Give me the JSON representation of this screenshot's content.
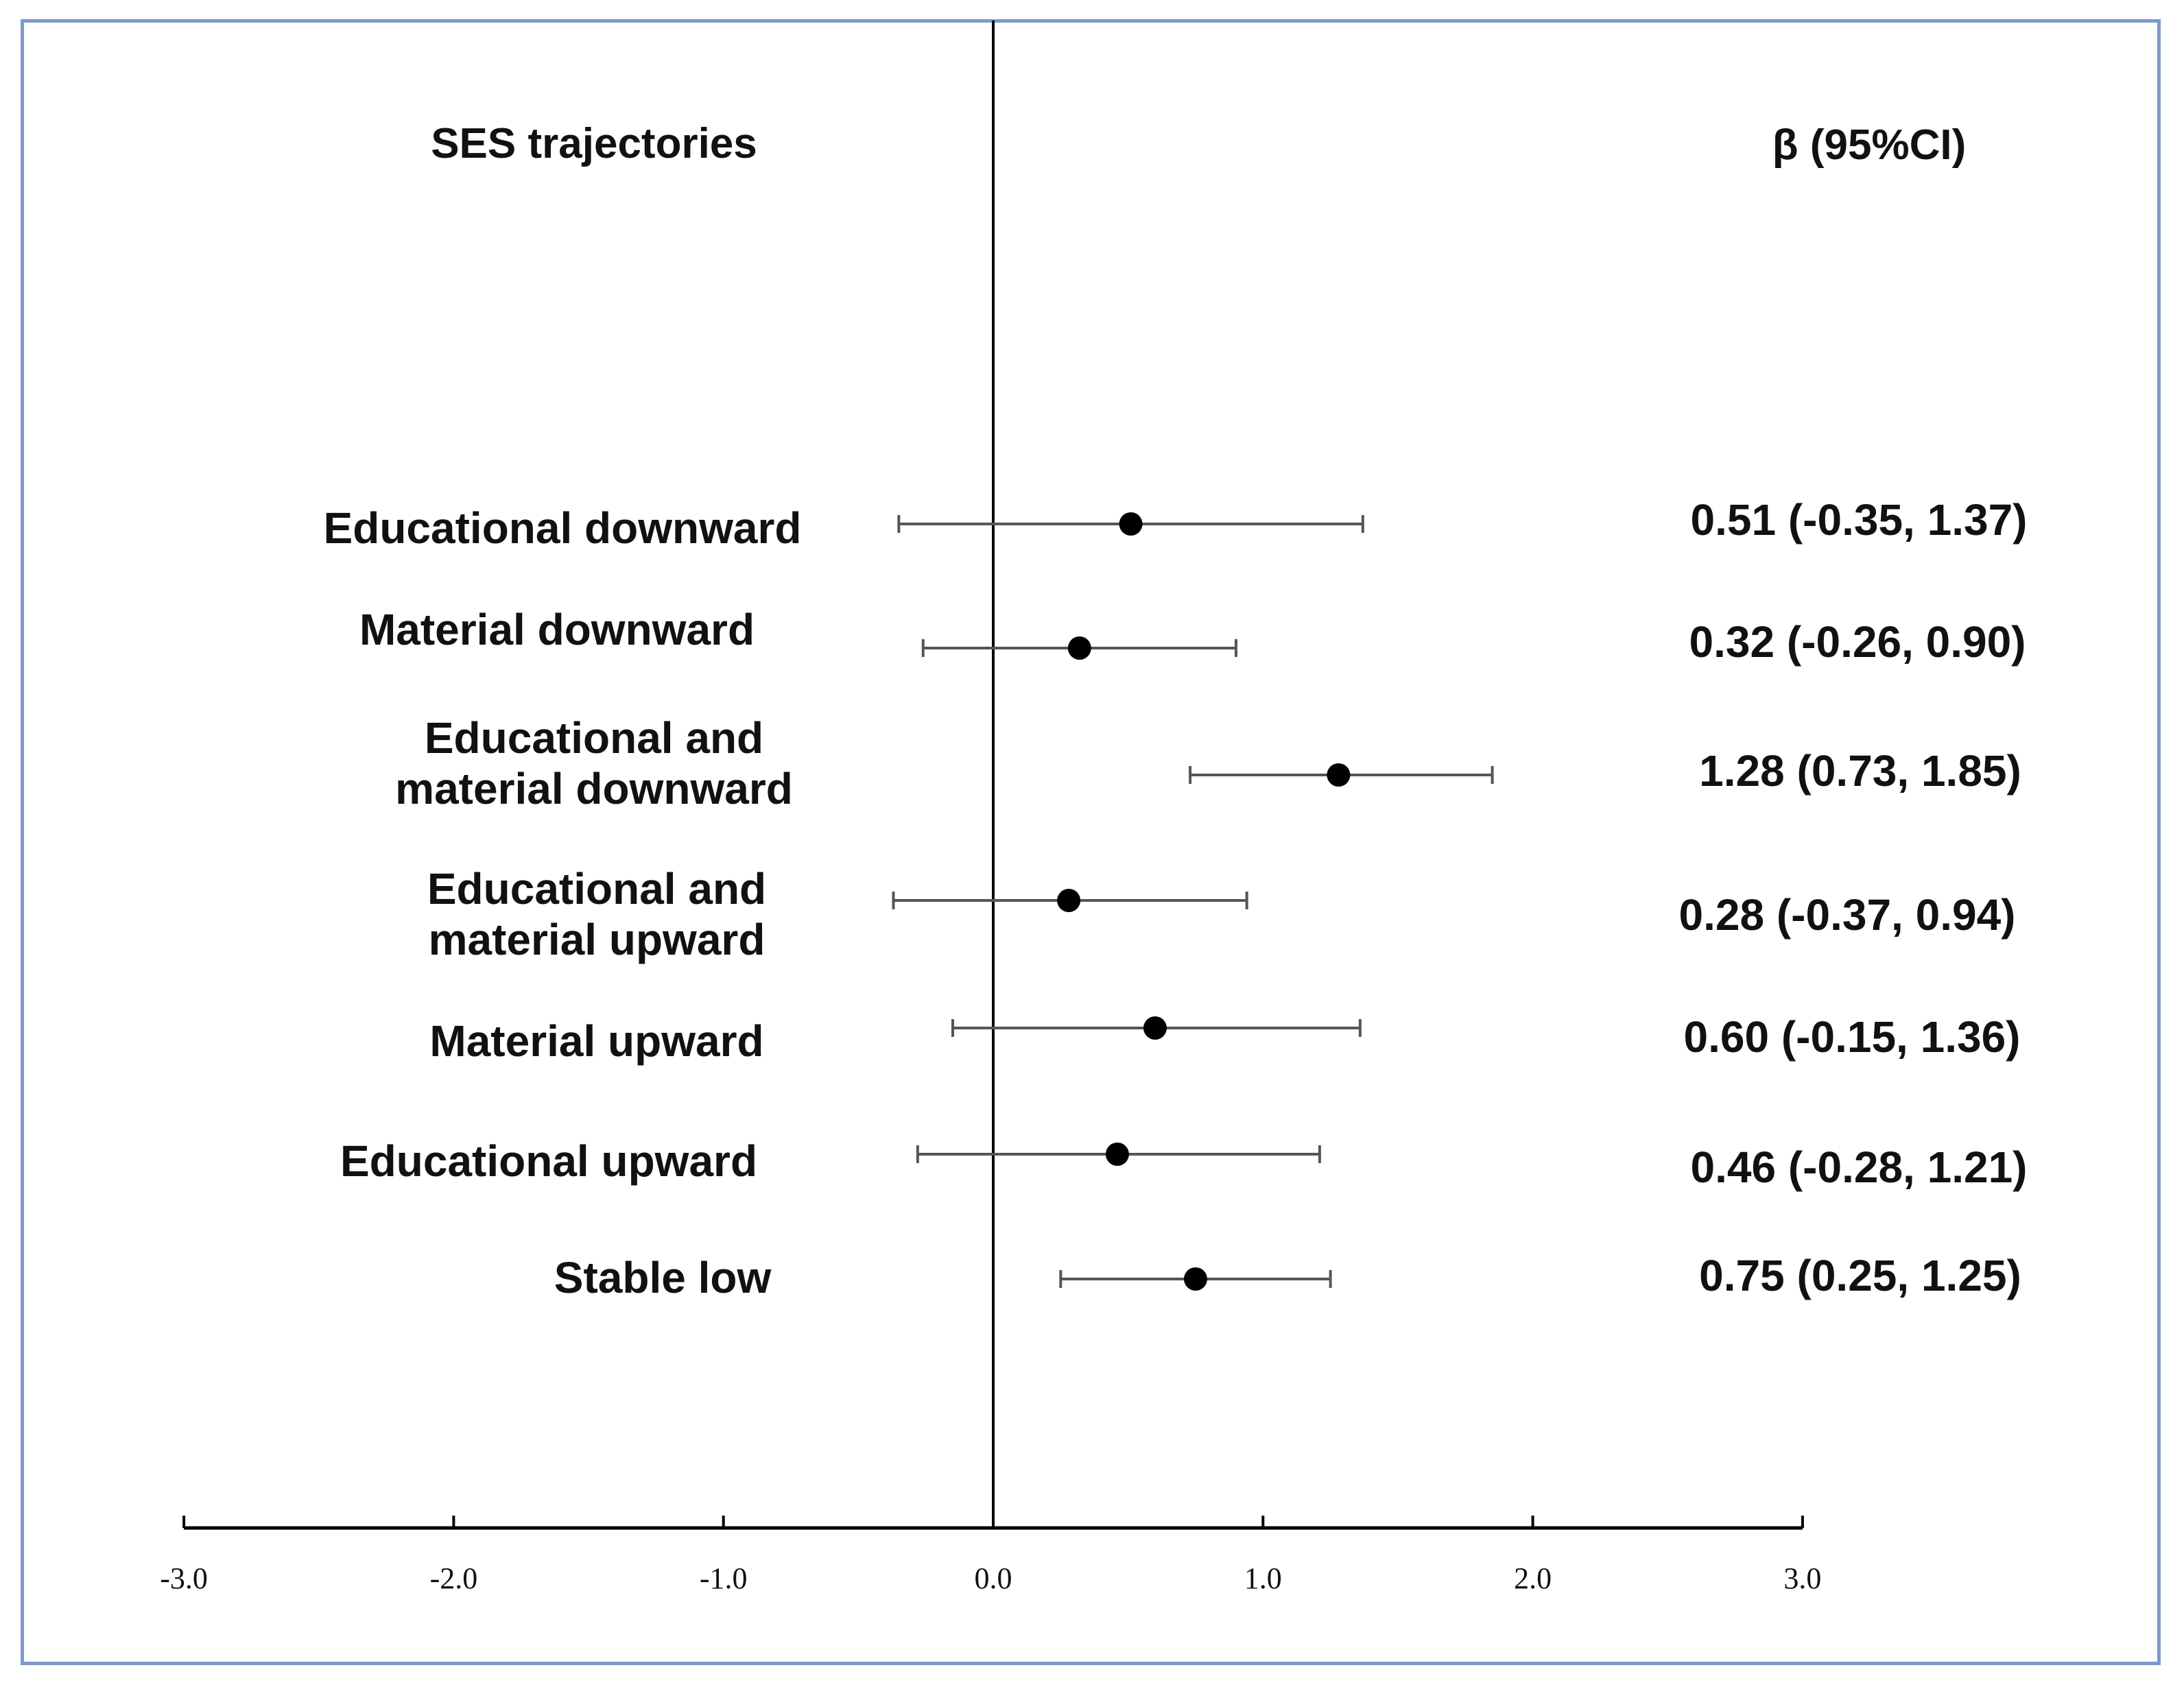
{
  "chart_data": {
    "type": "forest",
    "row_header": "SES trajectories",
    "value_header": "β (95%CI)",
    "reference_line": 0.0,
    "xlim": [
      -3.0,
      3.0
    ],
    "xticks": [
      -3.0,
      -2.0,
      -1.0,
      0.0,
      1.0,
      2.0,
      3.0
    ],
    "tick_labels": [
      "-3.0",
      "-2.0",
      "-1.0",
      "0.0",
      "1.0",
      "2.0",
      "3.0"
    ],
    "rows": [
      {
        "label_lines": [
          "Educational downward"
        ],
        "estimate": 0.51,
        "lower": -0.35,
        "upper": 1.37,
        "value_text": "0.51 (-0.35, 1.37)"
      },
      {
        "label_lines": [
          "Material downward"
        ],
        "estimate": 0.32,
        "lower": -0.26,
        "upper": 0.9,
        "value_text": "0.32 (-0.26, 0.90)"
      },
      {
        "label_lines": [
          "Educational and",
          "material downward"
        ],
        "estimate": 1.28,
        "lower": 0.73,
        "upper": 1.85,
        "value_text": "1.28 (0.73, 1.85)"
      },
      {
        "label_lines": [
          "Educational and",
          "material upward"
        ],
        "estimate": 0.28,
        "lower": -0.37,
        "upper": 0.94,
        "value_text": "0.28 (-0.37, 0.94)"
      },
      {
        "label_lines": [
          "Material upward"
        ],
        "estimate": 0.6,
        "lower": -0.15,
        "upper": 1.36,
        "value_text": "0.60 (-0.15, 1.36)"
      },
      {
        "label_lines": [
          "Educational upward"
        ],
        "estimate": 0.46,
        "lower": -0.28,
        "upper": 1.21,
        "value_text": "0.46 (-0.28, 1.21)"
      },
      {
        "label_lines": [
          "Stable low"
        ],
        "estimate": 0.75,
        "lower": 0.25,
        "upper": 1.25,
        "value_text": "0.75 (0.25, 1.25)"
      }
    ]
  }
}
